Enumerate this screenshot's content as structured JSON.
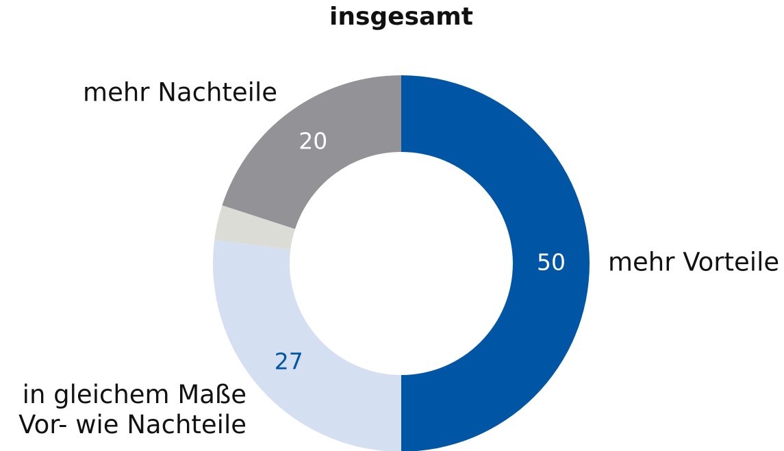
{
  "chart_data": {
    "type": "donut",
    "title": "insgesamt",
    "categories": [
      "mehr Vorteile",
      "in gleichem Maße\nVor- wie Nachteile",
      null,
      "mehr Nachteile"
    ],
    "values": [
      50,
      27,
      3,
      20
    ],
    "colors": [
      "#0055a4",
      "#d5dff2",
      "#dcdcd7",
      "#939397"
    ]
  }
}
